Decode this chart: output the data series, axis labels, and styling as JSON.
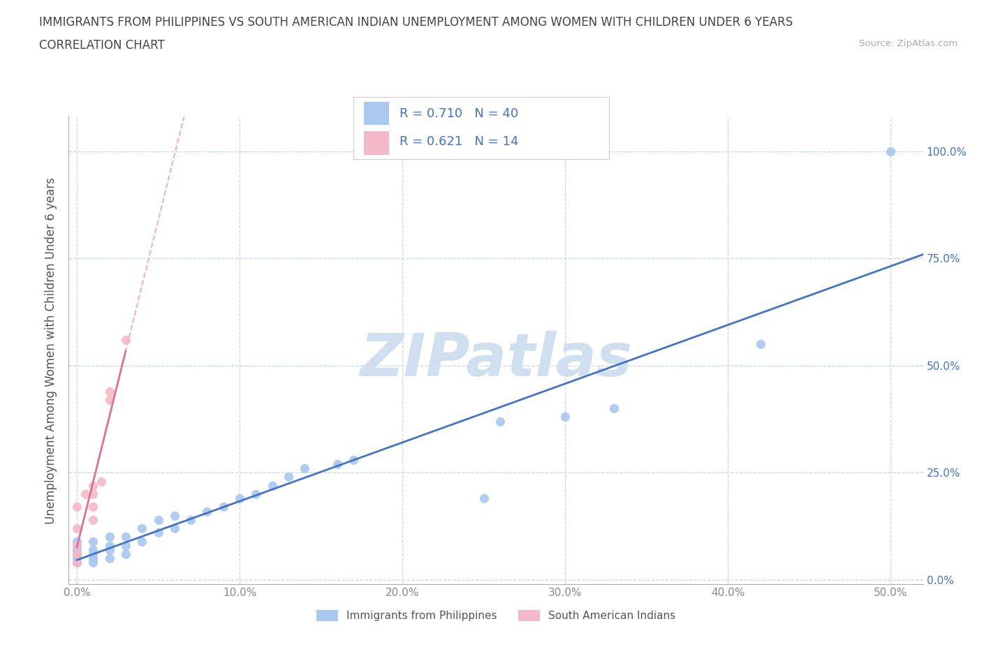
{
  "title": "IMMIGRANTS FROM PHILIPPINES VS SOUTH AMERICAN INDIAN UNEMPLOYMENT AMONG WOMEN WITH CHILDREN UNDER 6 YEARS",
  "subtitle": "CORRELATION CHART",
  "source": "Source: ZipAtlas.com",
  "ylabel": "Unemployment Among Women with Children Under 6 years",
  "legend_label_1": "Immigrants from Philippines",
  "legend_label_2": "South American Indians",
  "R1": 0.71,
  "N1": 40,
  "R2": 0.621,
  "N2": 14,
  "color1": "#a8c8f0",
  "color2": "#f4b8c8",
  "trendline1_color": "#4472c4",
  "trendline2_color": "#e07090",
  "trendline2_dash_color": "#f0b0c0",
  "legend_text_color": "#4472c4",
  "watermark": "ZIPatlas",
  "watermark_color": "#d0dff0",
  "xlim": [
    -0.005,
    0.52
  ],
  "ylim": [
    -0.01,
    1.08
  ],
  "xticks": [
    0.0,
    0.1,
    0.2,
    0.3,
    0.4,
    0.5
  ],
  "xticklabels": [
    "0.0%",
    "10.0%",
    "20.0%",
    "30.0%",
    "40.0%",
    "50.0%"
  ],
  "yticks_right": [
    0.0,
    0.25,
    0.5,
    0.75,
    1.0
  ],
  "yticklabels_right": [
    "0.0%",
    "25.0%",
    "50.0%",
    "75.0%",
    "100.0%"
  ],
  "philippines_x": [
    0.0,
    0.0,
    0.0,
    0.0,
    0.0,
    0.0,
    0.01,
    0.01,
    0.01,
    0.01,
    0.01,
    0.02,
    0.02,
    0.02,
    0.02,
    0.03,
    0.03,
    0.03,
    0.04,
    0.04,
    0.05,
    0.05,
    0.06,
    0.06,
    0.07,
    0.08,
    0.09,
    0.1,
    0.11,
    0.12,
    0.13,
    0.14,
    0.16,
    0.17,
    0.25,
    0.26,
    0.3,
    0.33,
    0.42,
    0.5
  ],
  "philippines_y": [
    0.04,
    0.05,
    0.06,
    0.07,
    0.08,
    0.09,
    0.04,
    0.05,
    0.06,
    0.07,
    0.09,
    0.05,
    0.07,
    0.08,
    0.1,
    0.06,
    0.08,
    0.1,
    0.09,
    0.12,
    0.11,
    0.14,
    0.12,
    0.15,
    0.14,
    0.16,
    0.17,
    0.19,
    0.2,
    0.22,
    0.24,
    0.26,
    0.27,
    0.28,
    0.19,
    0.37,
    0.38,
    0.4,
    0.55,
    1.0
  ],
  "sa_indian_x": [
    0.0,
    0.0,
    0.0,
    0.0,
    0.0,
    0.005,
    0.01,
    0.01,
    0.01,
    0.01,
    0.015,
    0.02,
    0.02,
    0.03
  ],
  "sa_indian_y": [
    0.04,
    0.06,
    0.08,
    0.12,
    0.17,
    0.2,
    0.14,
    0.17,
    0.2,
    0.22,
    0.23,
    0.42,
    0.44,
    0.56
  ],
  "grid_color": "#c8d4e8",
  "tick_color": "#888888",
  "bg_color": "#ffffff",
  "title_fontsize": 12,
  "subtitle_fontsize": 12,
  "axis_label_fontsize": 12,
  "tick_fontsize": 11,
  "legend_fontsize": 13
}
